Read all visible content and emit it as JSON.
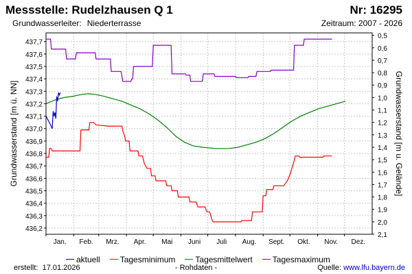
{
  "header": {
    "title": "Messstelle: Rudelzhausen Q 1",
    "nr": "Nr: 16295",
    "aquifer_label": "Grundwasserleiter:",
    "aquifer_value": "Niederterrasse",
    "period": "Zeitraum: 2007 - 2026"
  },
  "footer": {
    "created_label": "erstellt:",
    "created_date": "17.01.2026",
    "rawdata": "- Rohdaten -",
    "source_label": "Quelle:",
    "source_link": "www.lfu.bayern.de"
  },
  "chart_data": {
    "type": "line",
    "ylabel": "Grundwasserstand [m ü. NN]",
    "y2label": "Grundwasserstand [m u. Gelände]",
    "ylim": [
      436.15,
      437.77
    ],
    "y2lim": [
      2.1,
      0.48
    ],
    "yticks": [
      "437,7",
      "437,6",
      "437,5",
      "437,4",
      "437,3",
      "437,2",
      "437,1",
      "437,0",
      "436,9",
      "436,8",
      "436,7",
      "436,6",
      "436,5",
      "436,4",
      "436,3",
      "436,2"
    ],
    "yticks_values": [
      437.7,
      437.6,
      437.5,
      437.4,
      437.3,
      437.2,
      437.1,
      437.0,
      436.9,
      436.8,
      436.7,
      436.6,
      436.5,
      436.4,
      436.3,
      436.2
    ],
    "y2ticks": [
      "0,5",
      "0,6",
      "0,7",
      "0,8",
      "0,9",
      "1,0",
      "1,1",
      "1,2",
      "1,3",
      "1,4",
      "1,5",
      "1,6",
      "1,7",
      "1,8",
      "1,9",
      "2,0",
      "2,1"
    ],
    "y2ticks_values": [
      0.5,
      0.6,
      0.7,
      0.8,
      0.9,
      1.0,
      1.1,
      1.2,
      1.3,
      1.4,
      1.5,
      1.6,
      1.7,
      1.8,
      1.9,
      2.0,
      2.1
    ],
    "months": [
      "Jan.",
      "Feb.",
      "Mrz.",
      "Apr.",
      "Mai",
      "Juni",
      "Juli",
      "Aug.",
      "Sept.",
      "Okt.",
      "Nov.",
      "Dez."
    ],
    "xlim": [
      0,
      365
    ],
    "grid": true,
    "legend_position": "bottom",
    "series": [
      {
        "name": "aktuell",
        "color": "#0000cc",
        "points": [
          [
            0,
            437.1
          ],
          [
            3,
            437.06
          ],
          [
            5,
            437.03
          ],
          [
            7,
            437.0
          ],
          [
            8,
            437.14
          ],
          [
            9,
            437.1
          ],
          [
            10,
            437.13
          ],
          [
            11,
            437.08
          ],
          [
            12,
            437.26
          ],
          [
            13,
            437.22
          ],
          [
            14,
            437.29
          ],
          [
            15,
            437.27
          ],
          [
            16,
            437.29
          ]
        ]
      },
      {
        "name": "Tagesminimum",
        "color": "#ff0000",
        "points": [
          [
            0,
            436.77
          ],
          [
            3,
            436.77
          ],
          [
            4,
            436.84
          ],
          [
            6,
            436.84
          ],
          [
            7,
            436.82
          ],
          [
            22,
            436.82
          ],
          [
            38,
            436.82
          ],
          [
            39,
            436.99
          ],
          [
            48,
            436.99
          ],
          [
            49,
            437.05
          ],
          [
            53,
            437.05
          ],
          [
            56,
            437.03
          ],
          [
            69,
            437.02
          ],
          [
            85,
            437.02
          ],
          [
            86,
            436.98
          ],
          [
            88,
            436.94
          ],
          [
            89,
            436.9
          ],
          [
            93,
            436.9
          ],
          [
            94,
            436.82
          ],
          [
            103,
            436.82
          ],
          [
            104,
            436.78
          ],
          [
            108,
            436.78
          ],
          [
            110,
            436.72
          ],
          [
            113,
            436.68
          ],
          [
            117,
            436.68
          ],
          [
            118,
            436.62
          ],
          [
            122,
            436.62
          ],
          [
            123,
            436.58
          ],
          [
            134,
            436.58
          ],
          [
            135,
            436.54
          ],
          [
            140,
            436.54
          ],
          [
            141,
            436.5
          ],
          [
            147,
            436.5
          ],
          [
            148,
            436.45
          ],
          [
            160,
            436.45
          ],
          [
            161,
            436.41
          ],
          [
            168,
            436.41
          ],
          [
            170,
            436.37
          ],
          [
            178,
            436.37
          ],
          [
            180,
            436.33
          ],
          [
            183,
            436.33
          ],
          [
            186,
            436.26
          ],
          [
            187,
            436.25
          ],
          [
            200,
            436.25
          ],
          [
            218,
            436.25
          ],
          [
            219,
            436.26
          ],
          [
            230,
            436.26
          ],
          [
            231,
            436.33
          ],
          [
            242,
            436.33
          ],
          [
            243,
            436.46
          ],
          [
            246,
            436.46
          ],
          [
            247,
            436.51
          ],
          [
            254,
            436.51
          ],
          [
            255,
            436.54
          ],
          [
            266,
            436.54
          ],
          [
            270,
            436.58
          ],
          [
            273,
            436.63
          ],
          [
            276,
            436.7
          ],
          [
            278,
            436.75
          ],
          [
            279,
            436.78
          ],
          [
            283,
            436.78
          ],
          [
            284,
            436.77
          ],
          [
            306,
            436.77
          ],
          [
            310,
            436.77
          ],
          [
            311,
            436.78
          ],
          [
            318,
            436.78
          ],
          [
            320,
            436.78
          ]
        ]
      },
      {
        "name": "Tagesmittelwert",
        "color": "#008000",
        "points": [
          [
            0,
            437.2
          ],
          [
            10,
            437.23
          ],
          [
            20,
            437.25
          ],
          [
            30,
            437.26
          ],
          [
            40,
            437.275
          ],
          [
            47,
            437.28
          ],
          [
            55,
            437.275
          ],
          [
            65,
            437.26
          ],
          [
            75,
            437.24
          ],
          [
            85,
            437.22
          ],
          [
            95,
            437.19
          ],
          [
            105,
            437.16
          ],
          [
            115,
            437.12
          ],
          [
            125,
            437.07
          ],
          [
            135,
            437.01
          ],
          [
            145,
            436.94
          ],
          [
            155,
            436.89
          ],
          [
            165,
            436.86
          ],
          [
            175,
            436.85
          ],
          [
            190,
            436.84
          ],
          [
            205,
            436.84
          ],
          [
            215,
            436.85
          ],
          [
            225,
            436.87
          ],
          [
            235,
            436.89
          ],
          [
            245,
            436.92
          ],
          [
            255,
            436.96
          ],
          [
            265,
            437.01
          ],
          [
            275,
            437.06
          ],
          [
            285,
            437.1
          ],
          [
            295,
            437.13
          ],
          [
            305,
            437.16
          ],
          [
            315,
            437.18
          ],
          [
            325,
            437.2
          ],
          [
            335,
            437.22
          ]
        ]
      },
      {
        "name": "Tagesmaximum",
        "color": "#8000c0",
        "points": [
          [
            0,
            437.72
          ],
          [
            5,
            437.72
          ],
          [
            6,
            437.64
          ],
          [
            22,
            437.64
          ],
          [
            23,
            437.56
          ],
          [
            33,
            437.56
          ],
          [
            34,
            437.61
          ],
          [
            55,
            437.61
          ],
          [
            56,
            437.56
          ],
          [
            72,
            437.56
          ],
          [
            73,
            437.46
          ],
          [
            84,
            437.46
          ],
          [
            86,
            437.38
          ],
          [
            95,
            437.38
          ],
          [
            96,
            437.4
          ],
          [
            97,
            437.4
          ],
          [
            98,
            437.5
          ],
          [
            119,
            437.5
          ],
          [
            120,
            437.67
          ],
          [
            140,
            437.67
          ],
          [
            141,
            437.44
          ],
          [
            156,
            437.44
          ],
          [
            157,
            437.43
          ],
          [
            161,
            437.43
          ],
          [
            162,
            437.38
          ],
          [
            175,
            437.38
          ],
          [
            176,
            437.44
          ],
          [
            188,
            437.44
          ],
          [
            189,
            437.42
          ],
          [
            212,
            437.42
          ],
          [
            213,
            437.41
          ],
          [
            226,
            437.41
          ],
          [
            227,
            437.42
          ],
          [
            235,
            437.42
          ],
          [
            236,
            437.46
          ],
          [
            251,
            437.46
          ],
          [
            252,
            437.47
          ],
          [
            277,
            437.47
          ],
          [
            278,
            437.67
          ],
          [
            288,
            437.67
          ],
          [
            289,
            437.72
          ],
          [
            300,
            437.72
          ],
          [
            320,
            437.72
          ]
        ]
      }
    ]
  }
}
